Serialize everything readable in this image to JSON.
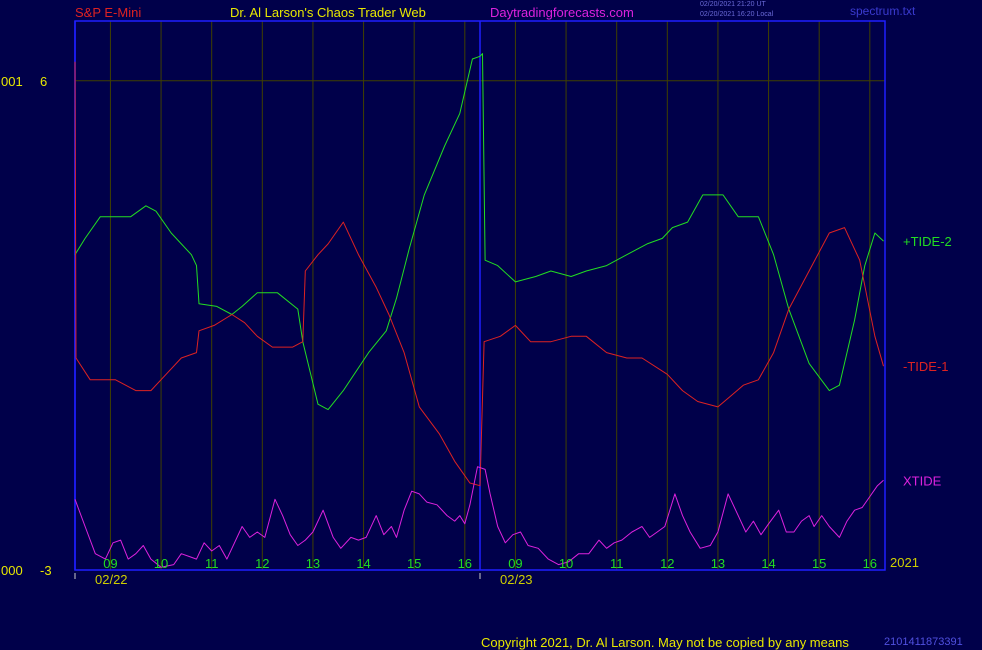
{
  "header": {
    "instrument": "S&P E-Mini",
    "title": "Dr. Al Larson's Chaos Trader Web",
    "site": "Daytradingforecasts.com",
    "timestamp_1": "02/20/2021 21:20 UT",
    "timestamp_2": "02/20/2021 16:20 Local",
    "file": "spectrum.txt"
  },
  "footer": {
    "copyright": "Copyright 2021, Dr. Al Larson. May not be copied by any means",
    "id": "2101411873391"
  },
  "colors": {
    "background": "#00004a",
    "frame": "#1f1fff",
    "grid": "#404000",
    "tide_plus": "#22dd22",
    "tide_minus": "#dd2222",
    "xtide": "#dd22dd",
    "axis_text": "#e8e800",
    "date_text": "#cfcf00",
    "instrument": "#dd2222",
    "title": "#e8e800",
    "site": "#dd22dd"
  },
  "chart_data": {
    "type": "line",
    "ylim": [
      -3,
      7.1
    ],
    "y_ticks": [
      {
        "value": 6,
        "label": "6",
        "prefix": "001"
      },
      {
        "value": -3,
        "label": "-3",
        "prefix": "000"
      }
    ],
    "x_range": [
      0,
      16
    ],
    "x_hour_ticks": [
      {
        "x": 0.7,
        "label": "09"
      },
      {
        "x": 1.7,
        "label": "10"
      },
      {
        "x": 2.7,
        "label": "11"
      },
      {
        "x": 3.7,
        "label": "12"
      },
      {
        "x": 4.7,
        "label": "13"
      },
      {
        "x": 5.7,
        "label": "14"
      },
      {
        "x": 6.7,
        "label": "15"
      },
      {
        "x": 7.7,
        "label": "16"
      },
      {
        "x": 8.7,
        "label": "09"
      },
      {
        "x": 9.7,
        "label": "10"
      },
      {
        "x": 10.7,
        "label": "11"
      },
      {
        "x": 11.7,
        "label": "12"
      },
      {
        "x": 12.7,
        "label": "13"
      },
      {
        "x": 13.7,
        "label": "14"
      },
      {
        "x": 14.7,
        "label": "15"
      },
      {
        "x": 15.7,
        "label": "16"
      }
    ],
    "day_boundaries": [
      {
        "x": 0,
        "label": "02/22"
      },
      {
        "x": 8,
        "label": "02/23"
      }
    ],
    "year_label": "2021",
    "series": [
      {
        "name": "+TIDE-2",
        "color": "#22dd22",
        "points": [
          [
            0,
            2.8
          ],
          [
            0.2,
            3.1
          ],
          [
            0.5,
            3.5
          ],
          [
            1.1,
            3.5
          ],
          [
            1.4,
            3.7
          ],
          [
            1.6,
            3.6
          ],
          [
            1.9,
            3.2
          ],
          [
            2.3,
            2.8
          ],
          [
            2.4,
            2.6
          ],
          [
            2.45,
            1.9
          ],
          [
            2.8,
            1.85
          ],
          [
            3.1,
            1.7
          ],
          [
            3.3,
            1.85
          ],
          [
            3.6,
            2.1
          ],
          [
            4.0,
            2.1
          ],
          [
            4.4,
            1.8
          ],
          [
            4.5,
            1.2
          ],
          [
            4.8,
            0.05
          ],
          [
            5.0,
            -0.05
          ],
          [
            5.3,
            0.3
          ],
          [
            5.8,
            1.0
          ],
          [
            6.15,
            1.4
          ],
          [
            6.35,
            2.0
          ],
          [
            6.6,
            2.9
          ],
          [
            6.9,
            3.9
          ],
          [
            7.3,
            4.8
          ],
          [
            7.6,
            5.4
          ],
          [
            7.85,
            6.4
          ],
          [
            8.0,
            6.45
          ],
          [
            8.05,
            6.5
          ],
          [
            8.1,
            2.7
          ],
          [
            8.35,
            2.6
          ],
          [
            8.7,
            2.3
          ],
          [
            9.1,
            2.4
          ],
          [
            9.4,
            2.5
          ],
          [
            9.8,
            2.4
          ],
          [
            10.1,
            2.5
          ],
          [
            10.5,
            2.6
          ],
          [
            10.9,
            2.8
          ],
          [
            11.3,
            3.0
          ],
          [
            11.6,
            3.1
          ],
          [
            11.8,
            3.3
          ],
          [
            12.1,
            3.4
          ],
          [
            12.4,
            3.9
          ],
          [
            12.8,
            3.9
          ],
          [
            13.1,
            3.5
          ],
          [
            13.5,
            3.5
          ],
          [
            13.8,
            2.8
          ],
          [
            14.1,
            1.8
          ],
          [
            14.5,
            0.8
          ],
          [
            14.9,
            0.3
          ],
          [
            15.1,
            0.4
          ],
          [
            15.4,
            1.6
          ],
          [
            15.6,
            2.6
          ],
          [
            15.8,
            3.2
          ],
          [
            15.97,
            3.05
          ]
        ]
      },
      {
        "name": "-TIDE-1",
        "color": "#dd2222",
        "points": [
          [
            0,
            6.35
          ],
          [
            0.02,
            0.9
          ],
          [
            0.3,
            0.5
          ],
          [
            0.8,
            0.5
          ],
          [
            1.2,
            0.3
          ],
          [
            1.5,
            0.3
          ],
          [
            1.8,
            0.6
          ],
          [
            2.1,
            0.9
          ],
          [
            2.4,
            1.0
          ],
          [
            2.45,
            1.4
          ],
          [
            2.75,
            1.5
          ],
          [
            3.1,
            1.7
          ],
          [
            3.35,
            1.55
          ],
          [
            3.6,
            1.3
          ],
          [
            3.9,
            1.1
          ],
          [
            4.3,
            1.1
          ],
          [
            4.5,
            1.2
          ],
          [
            4.55,
            2.5
          ],
          [
            4.8,
            2.8
          ],
          [
            5.0,
            3.0
          ],
          [
            5.3,
            3.4
          ],
          [
            5.6,
            2.8
          ],
          [
            5.95,
            2.2
          ],
          [
            6.2,
            1.7
          ],
          [
            6.5,
            1.0
          ],
          [
            6.8,
            -0.0
          ],
          [
            7.2,
            -0.5
          ],
          [
            7.5,
            -1.0
          ],
          [
            7.8,
            -1.4
          ],
          [
            8.0,
            -1.45
          ],
          [
            8.08,
            1.2
          ],
          [
            8.4,
            1.3
          ],
          [
            8.7,
            1.5
          ],
          [
            9.0,
            1.2
          ],
          [
            9.4,
            1.2
          ],
          [
            9.8,
            1.3
          ],
          [
            10.1,
            1.3
          ],
          [
            10.5,
            1.0
          ],
          [
            10.9,
            0.9
          ],
          [
            11.2,
            0.9
          ],
          [
            11.7,
            0.6
          ],
          [
            12.0,
            0.3
          ],
          [
            12.3,
            0.1
          ],
          [
            12.7,
            0.0
          ],
          [
            12.95,
            0.2
          ],
          [
            13.2,
            0.4
          ],
          [
            13.5,
            0.5
          ],
          [
            13.8,
            1.0
          ],
          [
            14.1,
            1.8
          ],
          [
            14.5,
            2.5
          ],
          [
            14.9,
            3.2
          ],
          [
            15.2,
            3.3
          ],
          [
            15.5,
            2.7
          ],
          [
            15.8,
            1.3
          ],
          [
            15.97,
            0.75
          ]
        ]
      },
      {
        "name": "XTIDE",
        "color": "#dd22dd",
        "points": [
          [
            0,
            -1.7
          ],
          [
            0.2,
            -2.2
          ],
          [
            0.4,
            -2.7
          ],
          [
            0.6,
            -2.8
          ],
          [
            0.75,
            -2.5
          ],
          [
            0.9,
            -2.45
          ],
          [
            1.05,
            -2.8
          ],
          [
            1.2,
            -2.7
          ],
          [
            1.35,
            -2.55
          ],
          [
            1.5,
            -2.8
          ],
          [
            1.7,
            -2.95
          ],
          [
            1.95,
            -2.9
          ],
          [
            2.1,
            -2.7
          ],
          [
            2.25,
            -2.75
          ],
          [
            2.4,
            -2.8
          ],
          [
            2.55,
            -2.5
          ],
          [
            2.7,
            -2.65
          ],
          [
            2.85,
            -2.55
          ],
          [
            3.0,
            -2.8
          ],
          [
            3.15,
            -2.5
          ],
          [
            3.3,
            -2.2
          ],
          [
            3.45,
            -2.4
          ],
          [
            3.6,
            -2.3
          ],
          [
            3.75,
            -2.4
          ],
          [
            3.95,
            -1.7
          ],
          [
            4.1,
            -2.0
          ],
          [
            4.25,
            -2.35
          ],
          [
            4.4,
            -2.55
          ],
          [
            4.55,
            -2.45
          ],
          [
            4.7,
            -2.3
          ],
          [
            4.9,
            -1.9
          ],
          [
            5.1,
            -2.4
          ],
          [
            5.25,
            -2.6
          ],
          [
            5.45,
            -2.4
          ],
          [
            5.6,
            -2.45
          ],
          [
            5.75,
            -2.4
          ],
          [
            5.95,
            -2.0
          ],
          [
            6.1,
            -2.35
          ],
          [
            6.25,
            -2.2
          ],
          [
            6.35,
            -2.4
          ],
          [
            6.5,
            -1.9
          ],
          [
            6.65,
            -1.55
          ],
          [
            6.8,
            -1.6
          ],
          [
            6.95,
            -1.75
          ],
          [
            7.15,
            -1.8
          ],
          [
            7.35,
            -2.0
          ],
          [
            7.5,
            -2.1
          ],
          [
            7.6,
            -2.0
          ],
          [
            7.7,
            -2.15
          ],
          [
            7.8,
            -1.8
          ],
          [
            7.95,
            -1.1
          ],
          [
            8.1,
            -1.15
          ],
          [
            8.2,
            -1.6
          ],
          [
            8.35,
            -2.2
          ],
          [
            8.5,
            -2.5
          ],
          [
            8.65,
            -2.35
          ],
          [
            8.8,
            -2.3
          ],
          [
            8.95,
            -2.55
          ],
          [
            9.15,
            -2.6
          ],
          [
            9.35,
            -2.8
          ],
          [
            9.55,
            -2.9
          ],
          [
            9.75,
            -2.85
          ],
          [
            9.95,
            -2.7
          ],
          [
            10.15,
            -2.7
          ],
          [
            10.35,
            -2.45
          ],
          [
            10.5,
            -2.6
          ],
          [
            10.65,
            -2.5
          ],
          [
            10.8,
            -2.45
          ],
          [
            11.0,
            -2.3
          ],
          [
            11.2,
            -2.2
          ],
          [
            11.35,
            -2.4
          ],
          [
            11.5,
            -2.3
          ],
          [
            11.65,
            -2.2
          ],
          [
            11.85,
            -1.6
          ],
          [
            12.0,
            -2.0
          ],
          [
            12.15,
            -2.3
          ],
          [
            12.35,
            -2.6
          ],
          [
            12.55,
            -2.55
          ],
          [
            12.7,
            -2.3
          ],
          [
            12.9,
            -1.6
          ],
          [
            13.1,
            -2.0
          ],
          [
            13.25,
            -2.3
          ],
          [
            13.4,
            -2.1
          ],
          [
            13.55,
            -2.35
          ],
          [
            13.7,
            -2.15
          ],
          [
            13.9,
            -1.9
          ],
          [
            14.05,
            -2.3
          ],
          [
            14.2,
            -2.3
          ],
          [
            14.35,
            -2.1
          ],
          [
            14.5,
            -2.0
          ],
          [
            14.6,
            -2.2
          ],
          [
            14.75,
            -2.0
          ],
          [
            14.9,
            -2.2
          ],
          [
            15.1,
            -2.4
          ],
          [
            15.25,
            -2.1
          ],
          [
            15.4,
            -1.9
          ],
          [
            15.55,
            -1.85
          ],
          [
            15.7,
            -1.65
          ],
          [
            15.85,
            -1.45
          ],
          [
            15.97,
            -1.35
          ]
        ]
      }
    ]
  }
}
